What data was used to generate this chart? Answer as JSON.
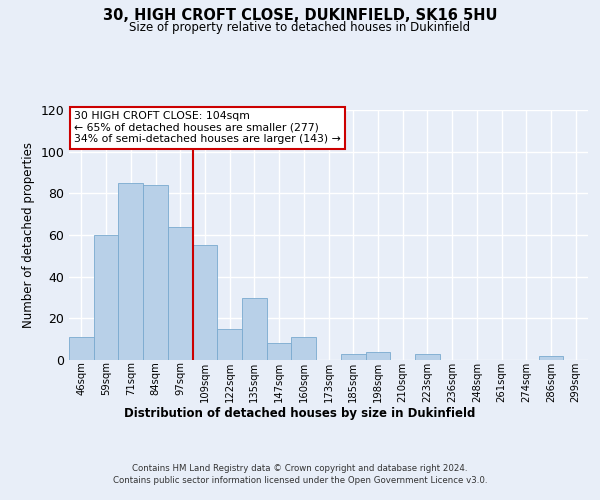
{
  "title": "30, HIGH CROFT CLOSE, DUKINFIELD, SK16 5HU",
  "subtitle": "Size of property relative to detached houses in Dukinfield",
  "xlabel": "Distribution of detached houses by size in Dukinfield",
  "ylabel": "Number of detached properties",
  "categories": [
    "46sqm",
    "59sqm",
    "71sqm",
    "84sqm",
    "97sqm",
    "109sqm",
    "122sqm",
    "135sqm",
    "147sqm",
    "160sqm",
    "173sqm",
    "185sqm",
    "198sqm",
    "210sqm",
    "223sqm",
    "236sqm",
    "248sqm",
    "261sqm",
    "274sqm",
    "286sqm",
    "299sqm"
  ],
  "values": [
    11,
    60,
    85,
    84,
    64,
    55,
    15,
    30,
    8,
    11,
    0,
    3,
    4,
    0,
    3,
    0,
    0,
    0,
    0,
    2,
    0
  ],
  "bar_color": "#b8d0e8",
  "bar_edge_color": "#7aaacf",
  "vline_color": "#cc0000",
  "annotation_line1": "30 HIGH CROFT CLOSE: 104sqm",
  "annotation_line2": "← 65% of detached houses are smaller (277)",
  "annotation_line3": "34% of semi-detached houses are larger (143) →",
  "annotation_box_color": "#ffffff",
  "annotation_box_edge": "#cc0000",
  "ylim": [
    0,
    120
  ],
  "yticks": [
    0,
    20,
    40,
    60,
    80,
    100,
    120
  ],
  "footer_line1": "Contains HM Land Registry data © Crown copyright and database right 2024.",
  "footer_line2": "Contains public sector information licensed under the Open Government Licence v3.0.",
  "bg_color": "#e8eef8",
  "plot_bg_color": "#e8eef8"
}
